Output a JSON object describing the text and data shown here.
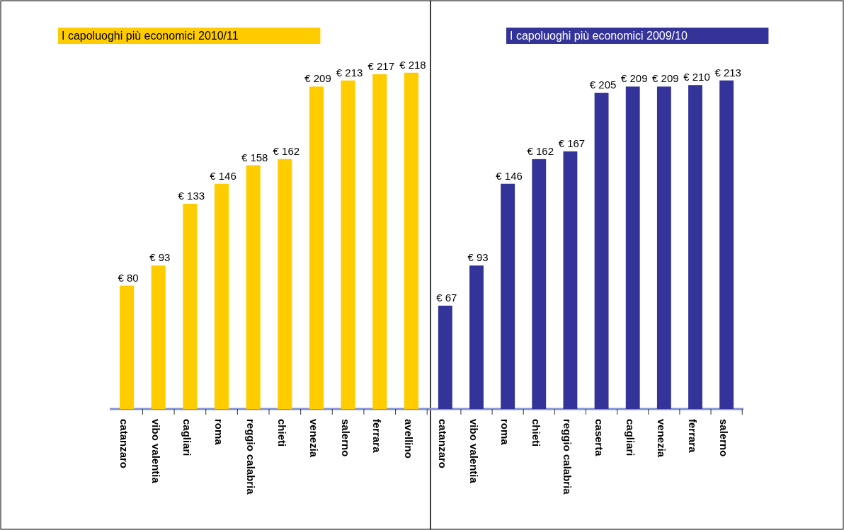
{
  "chart_data": [
    {
      "type": "bar",
      "title": "I capoluoghi più economici 2010/11",
      "categories": [
        "catanzaro",
        "vibo valentia",
        "cagliari",
        "roma",
        "reggio calabria",
        "chieti",
        "venezia",
        "salerno",
        "ferrara",
        "avellino"
      ],
      "values": [
        80,
        93,
        133,
        146,
        158,
        162,
        209,
        213,
        217,
        218
      ],
      "color": "#ffcc00",
      "value_labels": [
        "€ 80",
        "€ 93",
        "€ 133",
        "€ 146",
        "€ 158",
        "€ 162",
        "€ 209",
        "€ 213",
        "€ 217",
        "€ 218"
      ],
      "tick_labels": "x"
    },
    {
      "type": "bar",
      "title": "I capoluoghi più economici 2009/10",
      "categories": [
        "catanzaro",
        "vibo valentia",
        "roma",
        "chieti",
        "reggio calabria",
        "caserta",
        "cagliari",
        "venezia",
        "ferrara",
        "salerno"
      ],
      "values": [
        67,
        93,
        146,
        162,
        167,
        205,
        209,
        209,
        210,
        213
      ],
      "color": "#333399",
      "value_labels": [
        "€ 67",
        "€ 93",
        "€ 146",
        "€ 162",
        "€ 167",
        "€ 205",
        "€ 209",
        "€ 209",
        "€ 210",
        "€ 213"
      ],
      "tick_labels": "x"
    }
  ]
}
